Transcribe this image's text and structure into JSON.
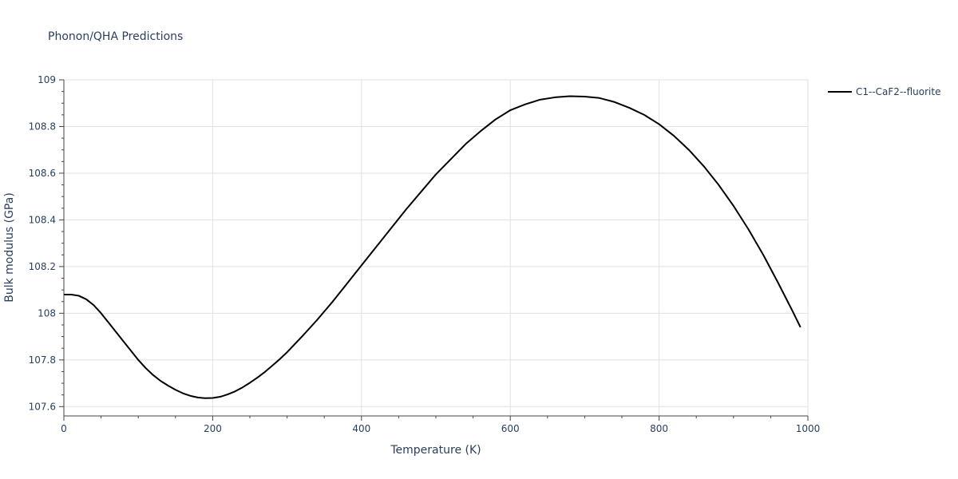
{
  "chart_data": {
    "type": "line",
    "title": "Phonon/QHA Predictions",
    "xlabel": "Temperature (K)",
    "ylabel": "Bulk modulus (GPa)",
    "xlim": [
      0,
      1000
    ],
    "ylim": [
      107.56,
      109
    ],
    "xticks": [
      0,
      200,
      400,
      600,
      800,
      1000
    ],
    "xtick_labels": [
      "0",
      "200",
      "400",
      "600",
      "800",
      "1000"
    ],
    "yticks": [
      107.6,
      107.8,
      108,
      108.2,
      108.4,
      108.6,
      108.8,
      109
    ],
    "ytick_labels": [
      "107.6",
      "107.8",
      "108",
      "108.2",
      "108.4",
      "108.6",
      "108.8",
      "109"
    ],
    "grid": true,
    "legend_position": "top-right",
    "series": [
      {
        "name": "C1--CaF2--fluorite",
        "color": "#000000",
        "x": [
          0,
          10,
          20,
          30,
          40,
          50,
          60,
          70,
          80,
          90,
          100,
          110,
          120,
          130,
          140,
          150,
          160,
          170,
          180,
          190,
          200,
          210,
          220,
          230,
          240,
          250,
          260,
          270,
          280,
          290,
          300,
          320,
          340,
          360,
          380,
          400,
          420,
          440,
          460,
          480,
          500,
          520,
          540,
          560,
          580,
          600,
          620,
          640,
          660,
          680,
          700,
          720,
          740,
          760,
          780,
          800,
          820,
          840,
          860,
          880,
          900,
          920,
          940,
          960,
          980,
          990
        ],
        "y": [
          108.08,
          108.08,
          108.075,
          108.06,
          108.035,
          108.0,
          107.96,
          107.92,
          107.88,
          107.84,
          107.8,
          107.765,
          107.735,
          107.71,
          107.69,
          107.672,
          107.657,
          107.646,
          107.639,
          107.636,
          107.637,
          107.642,
          107.652,
          107.665,
          107.682,
          107.702,
          107.724,
          107.748,
          107.775,
          107.803,
          107.833,
          107.9,
          107.97,
          108.045,
          108.125,
          108.205,
          108.285,
          108.365,
          108.445,
          108.52,
          108.595,
          108.66,
          108.725,
          108.78,
          108.83,
          108.87,
          108.895,
          108.915,
          108.925,
          108.93,
          108.928,
          108.922,
          108.905,
          108.88,
          108.85,
          108.81,
          108.76,
          108.7,
          108.63,
          108.55,
          108.46,
          108.36,
          108.25,
          108.13,
          108.005,
          107.94
        ]
      }
    ]
  }
}
